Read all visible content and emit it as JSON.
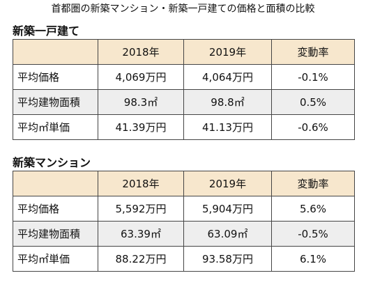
{
  "header": {
    "title": "首都圏の新築マンション・新築一戸建ての価格と面積の比較"
  },
  "sections": [
    {
      "heading": "新築一戸建て",
      "table": {
        "columns": [
          "2018年",
          "2019年",
          "変動率"
        ],
        "rows": [
          [
            "平均価格",
            "4,069万円",
            "4,064万円",
            "-0.1%"
          ],
          [
            "平均建物面積",
            "98.3㎡",
            "98.8㎡",
            "0.5%"
          ],
          [
            "平均㎡単価",
            "41.39万円",
            "41.13万円",
            "-0.6%"
          ]
        ]
      }
    },
    {
      "heading": "新築マンション",
      "table": {
        "columns": [
          "2018年",
          "2019年",
          "変動率"
        ],
        "rows": [
          [
            "平均価格",
            "5,592万円",
            "5,904万円",
            "5.6%"
          ],
          [
            "平均建物面積",
            "63.39㎡",
            "63.09㎡",
            "-0.5%"
          ],
          [
            "平均㎡単価",
            "88.22万円",
            "93.58万円",
            "6.1%"
          ]
        ]
      }
    }
  ]
}
